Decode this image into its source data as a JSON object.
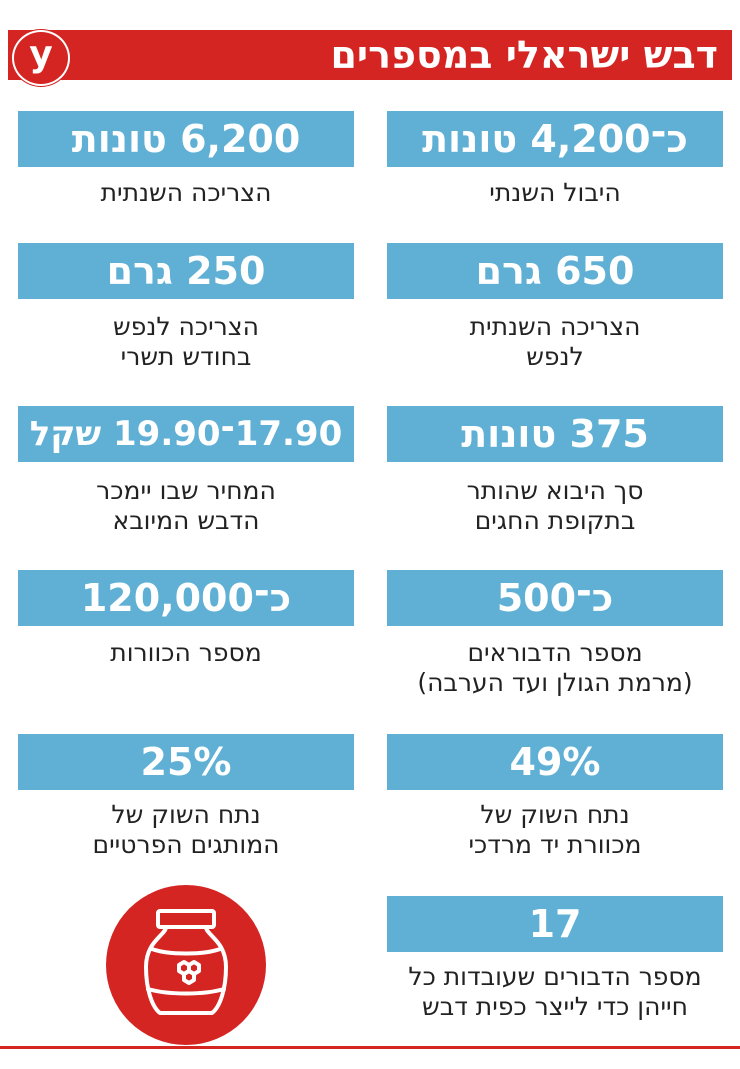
{
  "header": {
    "title": "דבש ישראלי במספרים",
    "logo_text": "y"
  },
  "stats": {
    "r1": {
      "value": "כ־4,200 טונות",
      "caption": [
        "היבול השנתי"
      ]
    },
    "l1": {
      "value": "6,200 טונות",
      "caption": [
        "הצריכה השנתית"
      ]
    },
    "r2": {
      "value": "650 גרם",
      "caption": [
        "הצריכה השנתית",
        "לנפש"
      ]
    },
    "l2": {
      "value": "250 גרם",
      "caption": [
        "הצריכה לנפש",
        "בחודש תשרי"
      ]
    },
    "r3": {
      "value": "375 טונות",
      "caption": [
        "סך היבוא שהותר",
        "בתקופת החגים"
      ]
    },
    "l3": {
      "value": "17.90־19.90 שקל",
      "caption": [
        "המחיר שבו יימכר",
        "הדבש המיובא"
      ]
    },
    "r4": {
      "value": "כ־500",
      "caption": [
        "מספר הדבוראים",
        "(מרמת הגולן ועד הערבה)"
      ]
    },
    "l4": {
      "value": "כ־120,000",
      "caption": [
        "מספר הכוורות"
      ]
    },
    "r5": {
      "value": "49%",
      "caption": [
        "נתח השוק של",
        "מכוורת יד מרדכי"
      ]
    },
    "l5": {
      "value": "25%",
      "caption": [
        "נתח השוק של",
        "המותגים הפרטיים"
      ]
    },
    "r6": {
      "value": "17",
      "caption": [
        "מספר הדבורים שעובדות כל",
        "חייהן כדי לייצר כפית דבש"
      ]
    }
  },
  "colors": {
    "accent_red": "#d42522",
    "box_blue": "#5fb0d4"
  },
  "icons": {
    "logo": "yedioth-logo-icon",
    "jar": "honey-jar-icon"
  }
}
